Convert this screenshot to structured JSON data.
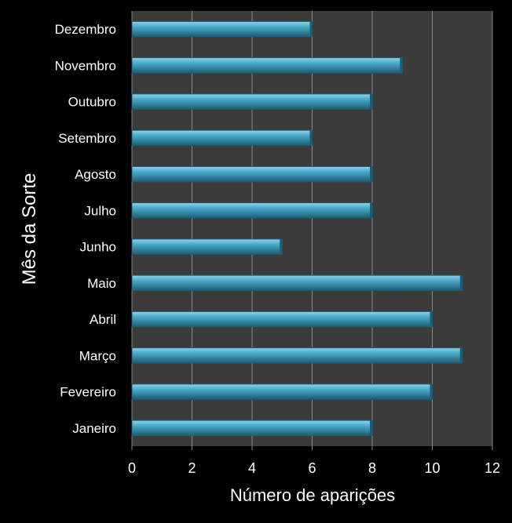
{
  "chart_data": {
    "type": "bar",
    "orientation": "horizontal",
    "title": "",
    "xlabel": "Número de aparições",
    "ylabel": "Mês da Sorte",
    "categories": [
      "Janeiro",
      "Fevereiro",
      "Março",
      "Abril",
      "Maio",
      "Junho",
      "Julho",
      "Agosto",
      "Setembro",
      "Outubro",
      "Novembro",
      "Dezembro"
    ],
    "values": [
      8,
      10,
      11,
      10,
      11,
      5,
      8,
      8,
      6,
      8,
      9,
      6
    ],
    "xlim": [
      0,
      12
    ],
    "xticks": [
      "0",
      "2",
      "4",
      "6",
      "8",
      "10",
      "12"
    ],
    "grid": "vertical",
    "legend": "none",
    "colors": {
      "page_background": "#000000",
      "plot_background": "#3b3b3b",
      "gridline": "#8a8a8a",
      "bar_fill": "#4aa9c9",
      "bar_highlight": "#8fd3ea",
      "bar_shadow": "#1d5d74",
      "text": "#ffffff"
    }
  }
}
